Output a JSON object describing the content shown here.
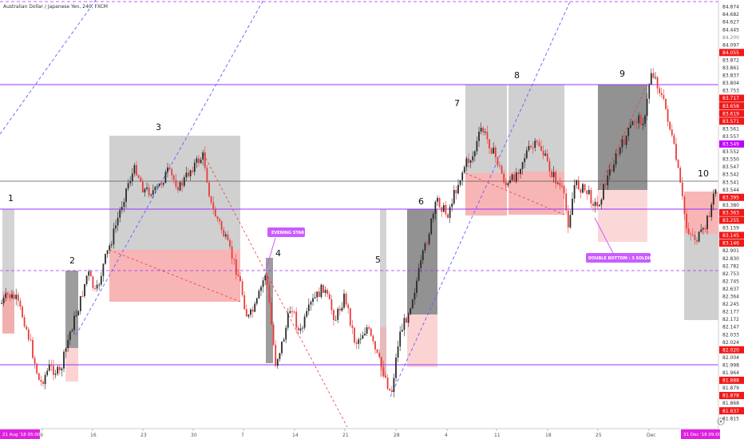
{
  "chart_data": {
    "type": "candlestick",
    "title": "Australian Dollar / Japanese Yen, 240, FXCM",
    "x_labels": [
      "9",
      "16",
      "23",
      "30",
      "7",
      "14",
      "21",
      "28",
      "4",
      "11",
      "18",
      "25",
      "Dec"
    ],
    "start_badge": "21 Aug '18  05:00",
    "end_badge": "31 Dec '18  09:00",
    "price_ticks": [
      {
        "v": "84.874",
        "bg": "#ffffff",
        "fg": "#333333"
      },
      {
        "v": "84.682",
        "bg": "#ffffff",
        "fg": "#333333"
      },
      {
        "v": "84.627",
        "bg": "#ffffff",
        "fg": "#333333"
      },
      {
        "v": "84.445",
        "bg": "#ffffff",
        "fg": "#333333"
      },
      {
        "v": "84.200",
        "bg": "#ffffff",
        "fg": "#888888"
      },
      {
        "v": "84.097",
        "bg": "#ffffff",
        "fg": "#333333"
      },
      {
        "v": "84.055",
        "bg": "#f01818",
        "fg": "#ffffff"
      },
      {
        "v": "83.872",
        "bg": "#ffffff",
        "fg": "#333333"
      },
      {
        "v": "83.861",
        "bg": "#ffffff",
        "fg": "#333333"
      },
      {
        "v": "83.837",
        "bg": "#ffffff",
        "fg": "#333333"
      },
      {
        "v": "83.804",
        "bg": "#ffffff",
        "fg": "#333333"
      },
      {
        "v": "83.753",
        "bg": "#ffffff",
        "fg": "#333333"
      },
      {
        "v": "83.717",
        "bg": "#f01818",
        "fg": "#ffffff"
      },
      {
        "v": "83.658",
        "bg": "#f01818",
        "fg": "#ffffff"
      },
      {
        "v": "83.619",
        "bg": "#f01818",
        "fg": "#ffffff"
      },
      {
        "v": "83.571",
        "bg": "#f01818",
        "fg": "#ffffff"
      },
      {
        "v": "83.561",
        "bg": "#ffffff",
        "fg": "#333333"
      },
      {
        "v": "83.557",
        "bg": "#ffffff",
        "fg": "#333333"
      },
      {
        "v": "83.549",
        "bg": "#c000ff",
        "fg": "#ffffff"
      },
      {
        "v": "83.552",
        "bg": "#ffffff",
        "fg": "#333333"
      },
      {
        "v": "83.550",
        "bg": "#ffffff",
        "fg": "#333333"
      },
      {
        "v": "83.547",
        "bg": "#ffffff",
        "fg": "#333333"
      },
      {
        "v": "83.542",
        "bg": "#ffffff",
        "fg": "#333333"
      },
      {
        "v": "83.541",
        "bg": "#ffffff",
        "fg": "#333333"
      },
      {
        "v": "83.544",
        "bg": "#ffffff",
        "fg": "#333333"
      },
      {
        "v": "83.395",
        "bg": "#f01818",
        "fg": "#ffffff"
      },
      {
        "v": "83.380",
        "bg": "#ffffff",
        "fg": "#333333"
      },
      {
        "v": "83.363",
        "bg": "#f01818",
        "fg": "#ffffff"
      },
      {
        "v": "83.255",
        "bg": "#f01818",
        "fg": "#ffffff"
      },
      {
        "v": "83.159",
        "bg": "#ffffff",
        "fg": "#333333"
      },
      {
        "v": "83.145",
        "bg": "#f01818",
        "fg": "#ffffff"
      },
      {
        "v": "83.146",
        "bg": "#f01818",
        "fg": "#ffffff"
      },
      {
        "v": "82.901",
        "bg": "#ffffff",
        "fg": "#333333"
      },
      {
        "v": "82.830",
        "bg": "#ffffff",
        "fg": "#333333"
      },
      {
        "v": "82.782",
        "bg": "#ffffff",
        "fg": "#333333"
      },
      {
        "v": "82.753",
        "bg": "#ffffff",
        "fg": "#333333"
      },
      {
        "v": "82.745",
        "bg": "#ffffff",
        "fg": "#333333"
      },
      {
        "v": "82.637",
        "bg": "#ffffff",
        "fg": "#333333"
      },
      {
        "v": "82.364",
        "bg": "#ffffff",
        "fg": "#333333"
      },
      {
        "v": "82.245",
        "bg": "#ffffff",
        "fg": "#333333"
      },
      {
        "v": "82.177",
        "bg": "#ffffff",
        "fg": "#333333"
      },
      {
        "v": "82.172",
        "bg": "#ffffff",
        "fg": "#333333"
      },
      {
        "v": "82.147",
        "bg": "#ffffff",
        "fg": "#333333"
      },
      {
        "v": "82.033",
        "bg": "#ffffff",
        "fg": "#333333"
      },
      {
        "v": "82.024",
        "bg": "#ffffff",
        "fg": "#333333"
      },
      {
        "v": "82.020",
        "bg": "#f01818",
        "fg": "#ffffff"
      },
      {
        "v": "82.004",
        "bg": "#ffffff",
        "fg": "#333333"
      },
      {
        "v": "81.998",
        "bg": "#ffffff",
        "fg": "#333333"
      },
      {
        "v": "81.964",
        "bg": "#ffffff",
        "fg": "#333333"
      },
      {
        "v": "81.888",
        "bg": "#f01818",
        "fg": "#ffffff"
      },
      {
        "v": "81.879",
        "bg": "#ffffff",
        "fg": "#333333"
      },
      {
        "v": "81.878",
        "bg": "#f01818",
        "fg": "#ffffff"
      },
      {
        "v": "81.868",
        "bg": "#ffffff",
        "fg": "#333333"
      },
      {
        "v": "81.837",
        "bg": "#f01818",
        "fg": "#ffffff"
      },
      {
        "v": "81.815",
        "bg": "#ffffff",
        "fg": "#333333"
      }
    ],
    "wave_labels": [
      "1",
      "2",
      "3",
      "4",
      "5",
      "6",
      "7",
      "8",
      "9",
      "10"
    ],
    "annotations": [
      "EVENING STAR",
      "DOUBLE BOTTOM : 3 SOLDIERS"
    ],
    "colors": {
      "up": "#2a2a2a",
      "down": "#e83c3c",
      "level_line": "#9b30ff",
      "resistance_zone": "#f7a8a8",
      "neutral_zone": "#c8c8c8",
      "dark_zone": "#8c8c8c",
      "callout": "#c95cff",
      "trend": "#6a5cff"
    }
  }
}
